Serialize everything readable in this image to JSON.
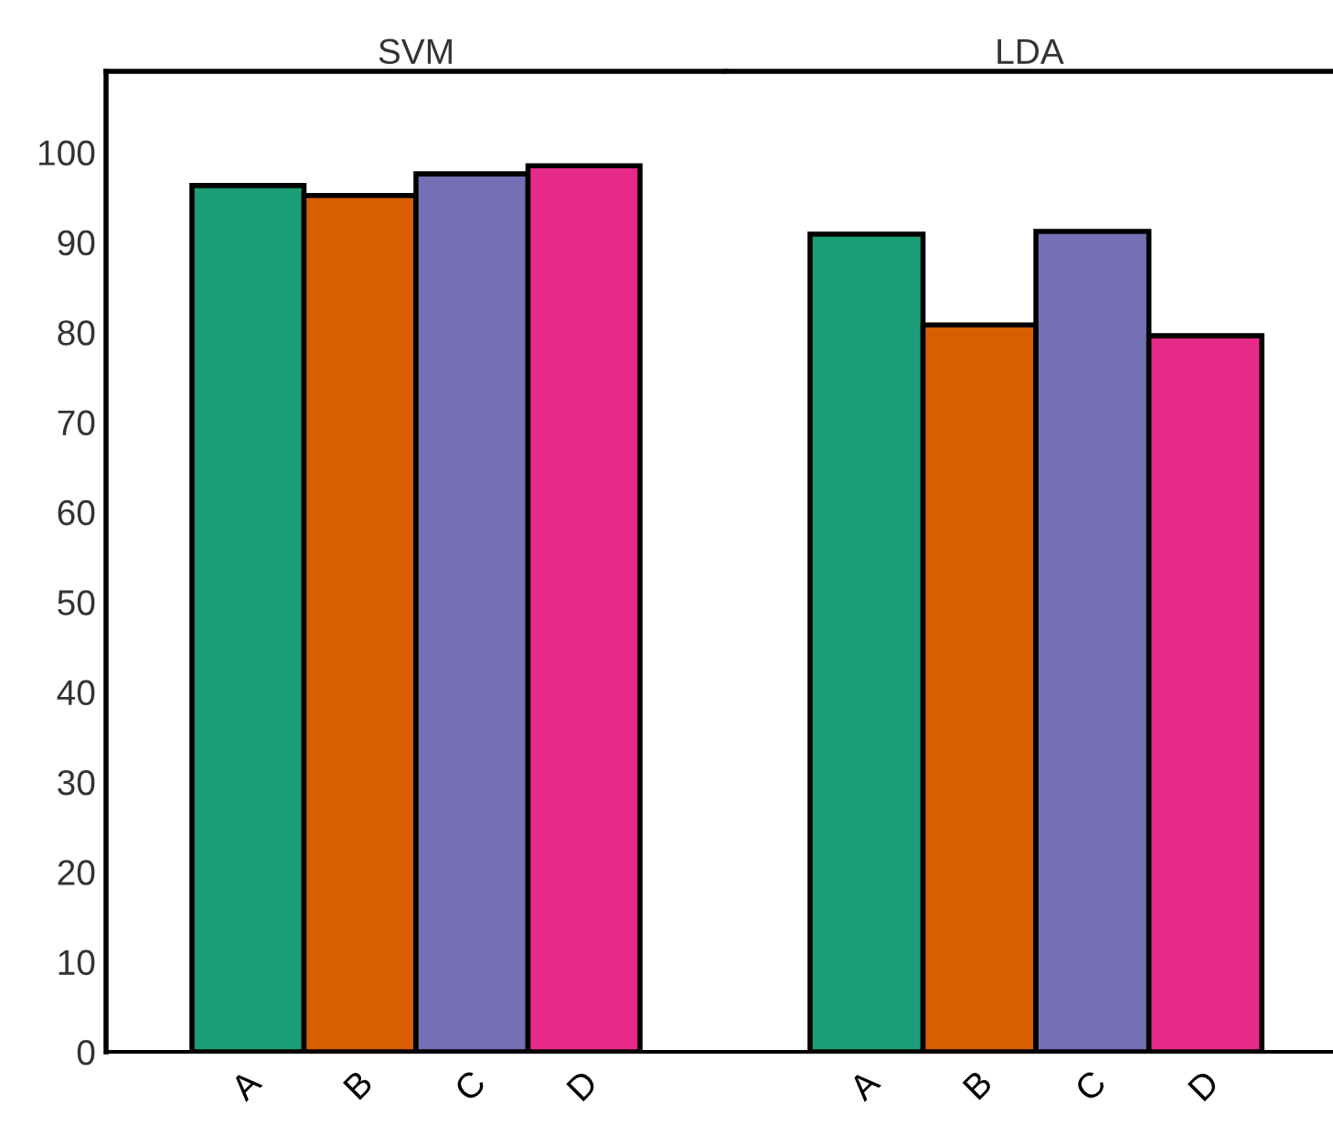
{
  "chart_data": [
    {
      "type": "bar",
      "title": "SVM",
      "categories": [
        "A",
        "B",
        "C",
        "D"
      ],
      "values": [
        96.3,
        95.2,
        97.6,
        98.5
      ],
      "colors": [
        "#1b9e77",
        "#d95f02",
        "#7570b3",
        "#e7298a"
      ],
      "ylim": [
        0,
        109
      ],
      "yticks": [
        0,
        10,
        20,
        30,
        40,
        50,
        60,
        70,
        80,
        90,
        100
      ],
      "grid": false
    },
    {
      "type": "bar",
      "title": "LDA",
      "categories": [
        "A",
        "B",
        "C",
        "D"
      ],
      "values": [
        90.9,
        80.8,
        91.2,
        79.6
      ],
      "colors": [
        "#1b9e77",
        "#d95f02",
        "#7570b3",
        "#e7298a"
      ],
      "ylim": [
        0,
        109
      ],
      "yticks": [
        0,
        10,
        20,
        30,
        40,
        50,
        60,
        70,
        80,
        90,
        100
      ],
      "tick_labels": "x",
      "grid": false
    }
  ]
}
